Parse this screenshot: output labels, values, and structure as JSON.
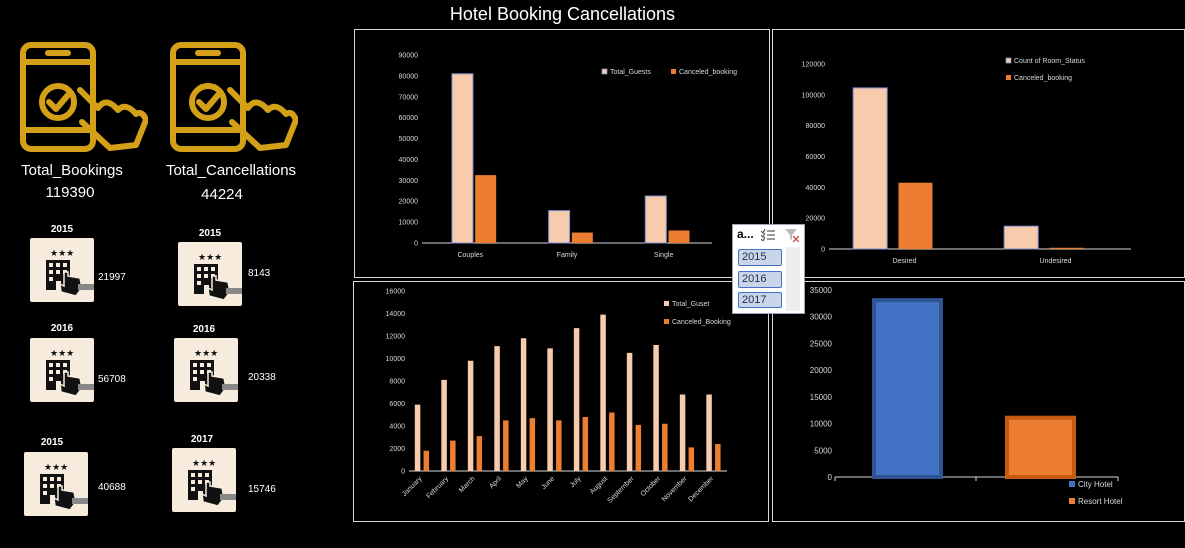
{
  "page_title": "Hotel Booking Cancellations",
  "kpis": [
    {
      "label": "Total_Bookings",
      "value": "119390",
      "icon": "phone-touch-check-icon"
    },
    {
      "label": "Total_Cancellations",
      "value": "44224",
      "icon": "phone-touch-check-icon"
    }
  ],
  "year_tiles": [
    {
      "year": "2015",
      "value": "21997",
      "icon": "hotel-touch-icon"
    },
    {
      "year": "2015",
      "value": "8143",
      "icon": "hotel-touch-icon"
    },
    {
      "year": "2016",
      "value": "56708",
      "icon": "hotel-touch-icon"
    },
    {
      "year": "2016",
      "value": "20338",
      "icon": "hotel-touch-icon"
    },
    {
      "year": "2015",
      "value": "40688",
      "icon": "hotel-touch-icon"
    },
    {
      "year": "2017",
      "value": "15746",
      "icon": "hotel-touch-icon"
    }
  ],
  "slicer": {
    "header": "a...",
    "items": [
      "2015",
      "2016",
      "2017"
    ],
    "icons": [
      "multi-select-icon",
      "clear-filter-icon"
    ]
  },
  "colors": {
    "light": "#f8cbad",
    "dark": "#ed7d31",
    "blue": "#4472c4",
    "gold": "#d4a017"
  },
  "chart_data": [
    {
      "type": "bar",
      "categories": [
        "Couples",
        "Family",
        "Single"
      ],
      "series": [
        {
          "name": "Total_Guests",
          "values": [
            81000,
            15500,
            22500
          ]
        },
        {
          "name": "Canceled_booking",
          "values": [
            32500,
            5000,
            6000
          ]
        }
      ],
      "ylim": [
        0,
        90000
      ],
      "yticks": [
        "0",
        "10000",
        "20000",
        "30000",
        "40000",
        "50000",
        "60000",
        "70000",
        "80000",
        "90000"
      ],
      "legend": "top-right"
    },
    {
      "type": "bar",
      "categories": [
        "Desired",
        "Undesired"
      ],
      "series": [
        {
          "name": "Count of Room_Status",
          "values": [
            104500,
            14800
          ]
        },
        {
          "name": "Canceled_booking",
          "values": [
            43000,
            800
          ]
        }
      ],
      "ylim": [
        0,
        120000
      ],
      "yticks": [
        "0",
        "20000",
        "40000",
        "60000",
        "80000",
        "100000",
        "120000"
      ],
      "legend": "top-right"
    },
    {
      "type": "bar",
      "categories": [
        "January",
        "February",
        "March",
        "April",
        "May",
        "June",
        "July",
        "August",
        "September",
        "October",
        "November",
        "December"
      ],
      "series": [
        {
          "name": "Total_Guset",
          "values": [
            5900,
            8100,
            9800,
            11100,
            11800,
            10900,
            12700,
            13900,
            10500,
            11200,
            6800,
            6800
          ]
        },
        {
          "name": "Canceled_Booking",
          "values": [
            1800,
            2700,
            3100,
            4500,
            4700,
            4500,
            4800,
            5200,
            4100,
            4200,
            2100,
            2400
          ]
        }
      ],
      "ylim": [
        0,
        16000
      ],
      "yticks": [
        "0",
        "2000",
        "4000",
        "6000",
        "8000",
        "10000",
        "12000",
        "14000",
        "16000"
      ],
      "legend": "top-right"
    },
    {
      "type": "bar",
      "categories": [
        "City Hotel",
        "Resort Hotel"
      ],
      "values": [
        33100,
        11100
      ],
      "ylim": [
        0,
        35000
      ],
      "yticks": [
        "0",
        "5000",
        "10000",
        "15000",
        "20000",
        "25000",
        "30000",
        "35000"
      ],
      "legend": "bottom-right"
    }
  ]
}
